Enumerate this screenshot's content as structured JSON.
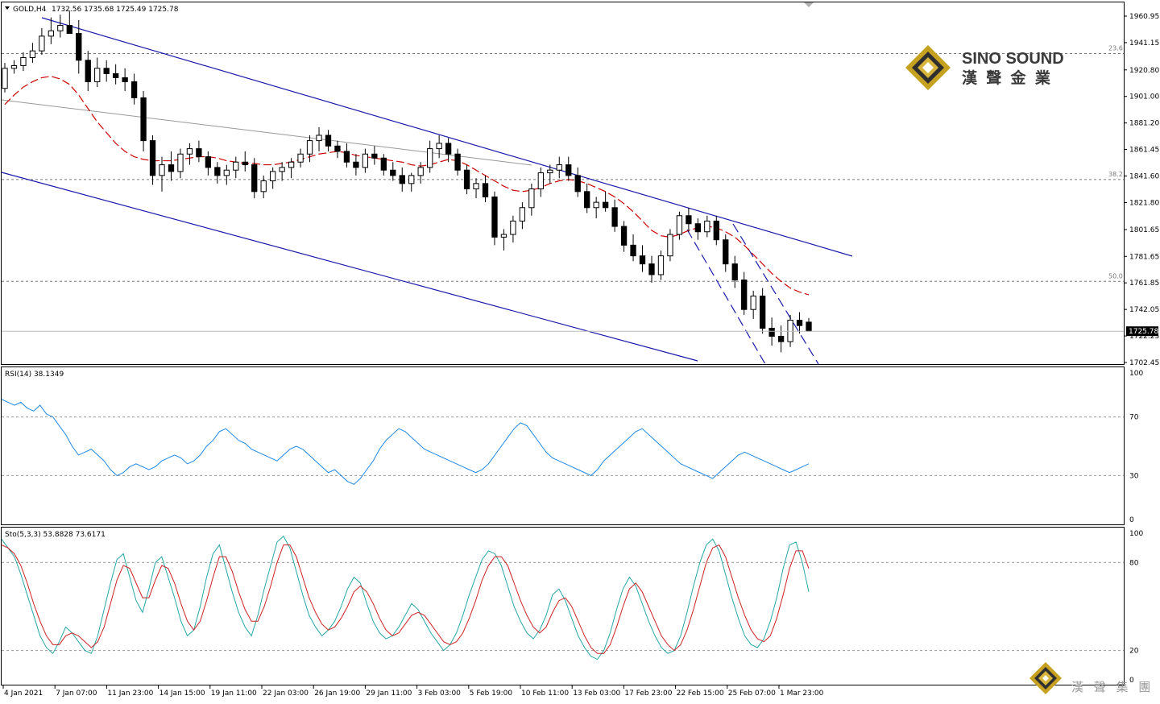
{
  "chart_data": [
    {
      "type": "candlestick",
      "symbol": "GOLD,H4",
      "ohlc_label": "1732.56 1735.68 1725.49 1725.78",
      "title": "GOLD,H4  1732.56 1735.68 1725.49 1725.78",
      "ylim": [
        1695,
        1975
      ],
      "y_ticks": [
        "1960.95",
        "1941.15",
        "1920.80",
        "1901.00",
        "1881.20",
        "1861.45",
        "1841.60",
        "1821.80",
        "1801.65",
        "1781.65",
        "1761.85",
        "1742.05",
        "1722.25",
        "1702.45"
      ],
      "current_price_label": "1725.78",
      "current_price": 1725.78,
      "fib_levels": [
        {
          "label": "23.6",
          "price": 1933
        },
        {
          "label": "38.2",
          "price": 1839
        },
        {
          "label": "50.0",
          "price": 1763
        }
      ],
      "moving_average_color": "#cc0000",
      "channel_color": "#1a1aaa",
      "candles": [
        [
          1907,
          1926,
          1904,
          1922
        ],
        [
          1922,
          1928,
          1918,
          1924
        ],
        [
          1924,
          1934,
          1920,
          1930
        ],
        [
          1930,
          1941,
          1926,
          1935
        ],
        [
          1935,
          1952,
          1932,
          1946
        ],
        [
          1946,
          1960,
          1940,
          1950
        ],
        [
          1950,
          1962,
          1945,
          1954
        ],
        [
          1954,
          1965,
          1948,
          1948
        ],
        [
          1948,
          1958,
          1918,
          1928
        ],
        [
          1928,
          1935,
          1905,
          1912
        ],
        [
          1912,
          1930,
          1908,
          1922
        ],
        [
          1922,
          1928,
          1912,
          1918
        ],
        [
          1918,
          1925,
          1910,
          1915
        ],
        [
          1915,
          1922,
          1905,
          1912
        ],
        [
          1912,
          1918,
          1895,
          1900
        ],
        [
          1900,
          1905,
          1860,
          1868
        ],
        [
          1868,
          1872,
          1835,
          1842
        ],
        [
          1842,
          1856,
          1830,
          1850
        ],
        [
          1850,
          1860,
          1838,
          1845
        ],
        [
          1845,
          1862,
          1840,
          1858
        ],
        [
          1858,
          1866,
          1850,
          1862
        ],
        [
          1862,
          1868,
          1852,
          1856
        ],
        [
          1856,
          1860,
          1842,
          1848
        ],
        [
          1848,
          1852,
          1836,
          1842
        ],
        [
          1842,
          1850,
          1835,
          1846
        ],
        [
          1846,
          1856,
          1840,
          1852
        ],
        [
          1852,
          1860,
          1845,
          1850
        ],
        [
          1850,
          1855,
          1825,
          1830
        ],
        [
          1830,
          1842,
          1825,
          1838
        ],
        [
          1838,
          1848,
          1832,
          1845
        ],
        [
          1845,
          1852,
          1838,
          1848
        ],
        [
          1848,
          1855,
          1840,
          1852
        ],
        [
          1852,
          1862,
          1848,
          1858
        ],
        [
          1858,
          1872,
          1852,
          1868
        ],
        [
          1868,
          1878,
          1860,
          1872
        ],
        [
          1872,
          1876,
          1860,
          1864
        ],
        [
          1864,
          1868,
          1855,
          1860
        ],
        [
          1860,
          1866,
          1848,
          1852
        ],
        [
          1852,
          1858,
          1842,
          1848
        ],
        [
          1848,
          1862,
          1844,
          1858
        ],
        [
          1858,
          1864,
          1850,
          1855
        ],
        [
          1855,
          1858,
          1842,
          1846
        ],
        [
          1846,
          1852,
          1838,
          1842
        ],
        [
          1842,
          1848,
          1830,
          1836
        ],
        [
          1836,
          1844,
          1830,
          1842
        ],
        [
          1842,
          1852,
          1836,
          1848
        ],
        [
          1848,
          1868,
          1844,
          1862
        ],
        [
          1862,
          1872,
          1855,
          1866
        ],
        [
          1866,
          1870,
          1852,
          1858
        ],
        [
          1858,
          1862,
          1842,
          1846
        ],
        [
          1846,
          1850,
          1828,
          1832
        ],
        [
          1832,
          1840,
          1825,
          1836
        ],
        [
          1836,
          1842,
          1822,
          1826
        ],
        [
          1826,
          1830,
          1790,
          1796
        ],
        [
          1796,
          1802,
          1786,
          1798
        ],
        [
          1798,
          1812,
          1792,
          1808
        ],
        [
          1808,
          1822,
          1802,
          1818
        ],
        [
          1818,
          1836,
          1812,
          1832
        ],
        [
          1832,
          1848,
          1826,
          1844
        ],
        [
          1844,
          1850,
          1836,
          1846
        ],
        [
          1846,
          1856,
          1840,
          1850
        ],
        [
          1850,
          1856,
          1838,
          1842
        ],
        [
          1842,
          1848,
          1826,
          1830
        ],
        [
          1830,
          1836,
          1814,
          1818
        ],
        [
          1818,
          1826,
          1810,
          1822
        ],
        [
          1822,
          1830,
          1815,
          1818
        ],
        [
          1818,
          1824,
          1800,
          1804
        ],
        [
          1804,
          1808,
          1785,
          1790
        ],
        [
          1790,
          1798,
          1778,
          1782
        ],
        [
          1782,
          1790,
          1770,
          1776
        ],
        [
          1776,
          1782,
          1762,
          1768
        ],
        [
          1768,
          1786,
          1764,
          1782
        ],
        [
          1782,
          1802,
          1778,
          1798
        ],
        [
          1798,
          1815,
          1794,
          1812
        ],
        [
          1812,
          1818,
          1800,
          1806
        ],
        [
          1806,
          1810,
          1794,
          1800
        ],
        [
          1800,
          1812,
          1796,
          1808
        ],
        [
          1808,
          1812,
          1790,
          1794
        ],
        [
          1794,
          1798,
          1770,
          1776
        ],
        [
          1776,
          1782,
          1758,
          1764
        ],
        [
          1764,
          1770,
          1738,
          1742
        ],
        [
          1742,
          1756,
          1735,
          1752
        ],
        [
          1752,
          1758,
          1724,
          1728
        ],
        [
          1728,
          1736,
          1715,
          1722
        ],
        [
          1722,
          1730,
          1710,
          1718
        ],
        [
          1718,
          1738,
          1714,
          1734
        ],
        [
          1734,
          1740,
          1724,
          1730
        ],
        [
          1732.56,
          1735.68,
          1725.49,
          1725.78
        ]
      ],
      "series": [
        {
          "name": "",
          "type": "moving-average",
          "values": [
            1895,
            1902,
            1908,
            1912,
            1915,
            1916,
            1914,
            1910,
            1902,
            1892,
            1882,
            1874,
            1866,
            1860,
            1856,
            1854,
            1853,
            1853,
            1853,
            1854,
            1855,
            1856,
            1856,
            1855,
            1853,
            1852,
            1851,
            1851,
            1850,
            1850,
            1851,
            1852,
            1854,
            1856,
            1858,
            1859,
            1860,
            1859,
            1857,
            1856,
            1855,
            1854,
            1853,
            1852,
            1850,
            1849,
            1850,
            1852,
            1854,
            1853,
            1850,
            1846,
            1842,
            1838,
            1834,
            1831,
            1830,
            1831,
            1833,
            1836,
            1838,
            1839,
            1838,
            1836,
            1833,
            1830,
            1826,
            1821,
            1815,
            1808,
            1801,
            1797,
            1796,
            1798,
            1801,
            1803,
            1804,
            1803,
            1800,
            1796,
            1790,
            1783,
            1776,
            1769,
            1763,
            1758,
            1755,
            1753
          ]
        }
      ],
      "xlabel": "",
      "ylabel": ""
    },
    {
      "type": "line",
      "title": "RSI(14) 38.1349",
      "ylim": [
        0,
        100
      ],
      "y_ticks": [
        "100",
        "70",
        "30",
        "0"
      ],
      "levels": [
        70,
        30
      ],
      "color": "#1e88e5",
      "series": [
        {
          "name": "",
          "values": [
            82,
            80,
            78,
            80,
            76,
            74,
            78,
            72,
            70,
            64,
            58,
            50,
            44,
            46,
            48,
            44,
            40,
            34,
            30,
            32,
            36,
            38,
            36,
            34,
            36,
            40,
            42,
            44,
            42,
            38,
            40,
            44,
            50,
            54,
            60,
            62,
            58,
            54,
            52,
            48,
            46,
            44,
            42,
            40,
            44,
            48,
            50,
            48,
            44,
            40,
            36,
            32,
            34,
            30,
            26,
            24,
            28,
            34,
            40,
            48,
            54,
            58,
            62,
            60,
            56,
            52,
            48,
            46,
            44,
            42,
            40,
            38,
            36,
            34,
            32,
            34,
            38,
            44,
            50,
            56,
            62,
            66,
            64,
            58,
            52,
            46,
            42,
            40,
            38,
            36,
            34,
            32,
            30,
            34,
            40,
            44,
            48,
            52,
            56,
            60,
            62,
            58,
            54,
            50,
            46,
            42,
            38,
            36,
            34,
            32,
            30,
            28,
            32,
            36,
            40,
            44,
            46,
            44,
            42,
            40,
            38,
            36,
            34,
            32,
            34,
            36,
            38
          ]
        }
      ]
    },
    {
      "type": "line",
      "title": "Sto(5,3,3) 53.8828 73.6171",
      "ylim": [
        0,
        100
      ],
      "y_ticks": [
        "100",
        "80",
        "20",
        "0"
      ],
      "levels": [
        80,
        20
      ],
      "series": [
        {
          "name": "",
          "color": "#26a6a6",
          "values": [
            96,
            90,
            84,
            72,
            58,
            44,
            30,
            22,
            18,
            26,
            36,
            32,
            26,
            20,
            18,
            30,
            48,
            66,
            82,
            86,
            70,
            54,
            46,
            62,
            80,
            84,
            70,
            56,
            40,
            30,
            34,
            50,
            70,
            86,
            92,
            76,
            60,
            46,
            36,
            30,
            44,
            62,
            78,
            94,
            98,
            90,
            74,
            58,
            44,
            36,
            30,
            34,
            40,
            50,
            62,
            70,
            66,
            52,
            40,
            32,
            28,
            30,
            36,
            44,
            52,
            48,
            40,
            32,
            26,
            20,
            24,
            32,
            44,
            58,
            70,
            82,
            88,
            86,
            78,
            64,
            50,
            40,
            32,
            28,
            34,
            44,
            58,
            62,
            54,
            42,
            30,
            22,
            16,
            14,
            20,
            32,
            48,
            62,
            70,
            64,
            52,
            40,
            30,
            22,
            18,
            20,
            30,
            46,
            64,
            80,
            92,
            96,
            88,
            72,
            56,
            42,
            30,
            24,
            22,
            28,
            40,
            56,
            76,
            92,
            94,
            80,
            60
          ]
        },
        {
          "name": "",
          "color": "#cc2222",
          "values": [
            92,
            90,
            86,
            78,
            66,
            52,
            40,
            30,
            24,
            24,
            30,
            32,
            30,
            26,
            22,
            26,
            36,
            52,
            68,
            78,
            76,
            66,
            56,
            56,
            68,
            78,
            76,
            66,
            52,
            40,
            34,
            40,
            54,
            70,
            84,
            84,
            74,
            60,
            48,
            40,
            40,
            50,
            64,
            80,
            92,
            92,
            84,
            70,
            56,
            46,
            38,
            34,
            36,
            42,
            50,
            60,
            64,
            60,
            52,
            42,
            34,
            30,
            32,
            38,
            44,
            46,
            44,
            38,
            32,
            26,
            24,
            26,
            32,
            42,
            54,
            68,
            78,
            84,
            84,
            78,
            66,
            54,
            44,
            36,
            32,
            36,
            46,
            54,
            56,
            50,
            40,
            30,
            22,
            18,
            18,
            24,
            36,
            50,
            62,
            66,
            60,
            50,
            40,
            30,
            24,
            20,
            24,
            34,
            48,
            64,
            80,
            90,
            92,
            84,
            70,
            56,
            44,
            34,
            28,
            26,
            30,
            42,
            58,
            76,
            88,
            88,
            76
          ]
        }
      ]
    }
  ],
  "x_axis_labels": [
    "4 Jan 2021",
    "7 Jan 07:00",
    "11 Jan 23:00",
    "14 Jan 15:00",
    "19 Jan 11:00",
    "22 Jan 03:00",
    "26 Jan 19:00",
    "29 Jan 11:00",
    "3 Feb 03:00",
    "5 Feb 19:00",
    "10 Feb 11:00",
    "13 Feb 03:00",
    "17 Feb 23:00",
    "22 Feb 15:00",
    "25 Feb 07:00",
    "1 Mar 23:00"
  ],
  "watermark": {
    "brand_en": "SINO SOUND",
    "brand_zh": "漢 聲 金 業",
    "corner_zh": "漢 聲 集 團",
    "gold_color": "#c8a020",
    "dark_color": "#3a3a3a"
  }
}
